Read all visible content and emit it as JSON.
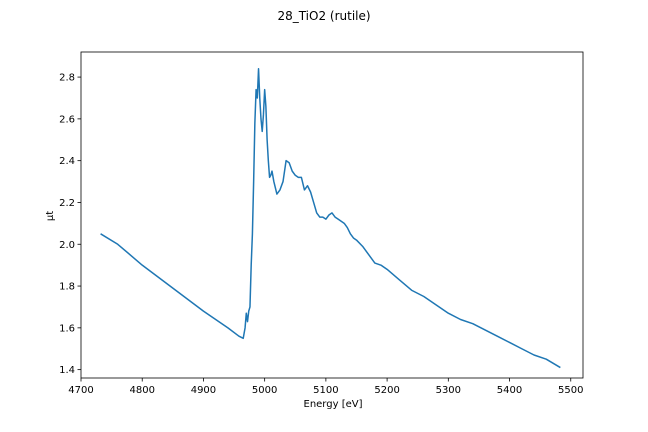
{
  "chart_data": {
    "type": "line",
    "title": "28_TiO2 (rutile)",
    "xlabel": "Energy [eV]",
    "ylabel": "μt",
    "xlim": [
      4700,
      5520
    ],
    "ylim": [
      1.36,
      2.92
    ],
    "xticks": [
      4700,
      4800,
      4900,
      5000,
      5100,
      5200,
      5300,
      5400,
      5500
    ],
    "yticks": [
      1.4,
      1.6,
      1.8,
      2.0,
      2.2,
      2.4,
      2.6,
      2.8
    ],
    "xtick_labels": [
      "4700",
      "4800",
      "4900",
      "5000",
      "5100",
      "5200",
      "5300",
      "5400",
      "5500"
    ],
    "ytick_labels": [
      "1.4",
      "1.6",
      "1.8",
      "2.0",
      "2.2",
      "2.4",
      "2.6",
      "2.8"
    ],
    "grid": false,
    "legend": "none",
    "series": [
      {
        "color": "#1f77b4",
        "x": [
          4732,
          4760,
          4800,
          4850,
          4900,
          4940,
          4958,
          4965,
          4968,
          4970,
          4972,
          4974,
          4976,
          4978,
          4980,
          4982,
          4984,
          4986,
          4988,
          4990,
          4992,
          4994,
          4996,
          4998,
          5000,
          5002,
          5004,
          5006,
          5008,
          5010,
          5012,
          5015,
          5020,
          5025,
          5030,
          5035,
          5040,
          5045,
          5050,
          5055,
          5060,
          5065,
          5070,
          5075,
          5080,
          5085,
          5090,
          5095,
          5100,
          5105,
          5110,
          5115,
          5120,
          5125,
          5130,
          5135,
          5140,
          5145,
          5150,
          5160,
          5170,
          5180,
          5190,
          5200,
          5220,
          5240,
          5260,
          5280,
          5300,
          5320,
          5340,
          5360,
          5380,
          5400,
          5420,
          5440,
          5460,
          5483
        ],
        "y": [
          2.05,
          2.0,
          1.9,
          1.79,
          1.68,
          1.6,
          1.56,
          1.55,
          1.6,
          1.67,
          1.63,
          1.68,
          1.7,
          1.9,
          2.05,
          2.3,
          2.58,
          2.74,
          2.7,
          2.84,
          2.7,
          2.6,
          2.54,
          2.62,
          2.74,
          2.66,
          2.5,
          2.4,
          2.32,
          2.33,
          2.35,
          2.3,
          2.24,
          2.26,
          2.3,
          2.4,
          2.39,
          2.35,
          2.33,
          2.32,
          2.32,
          2.26,
          2.28,
          2.25,
          2.2,
          2.15,
          2.13,
          2.13,
          2.12,
          2.14,
          2.15,
          2.13,
          2.12,
          2.11,
          2.1,
          2.08,
          2.05,
          2.03,
          2.02,
          1.99,
          1.95,
          1.91,
          1.9,
          1.88,
          1.83,
          1.78,
          1.75,
          1.71,
          1.67,
          1.64,
          1.62,
          1.59,
          1.56,
          1.53,
          1.5,
          1.47,
          1.45,
          1.41
        ]
      }
    ]
  }
}
